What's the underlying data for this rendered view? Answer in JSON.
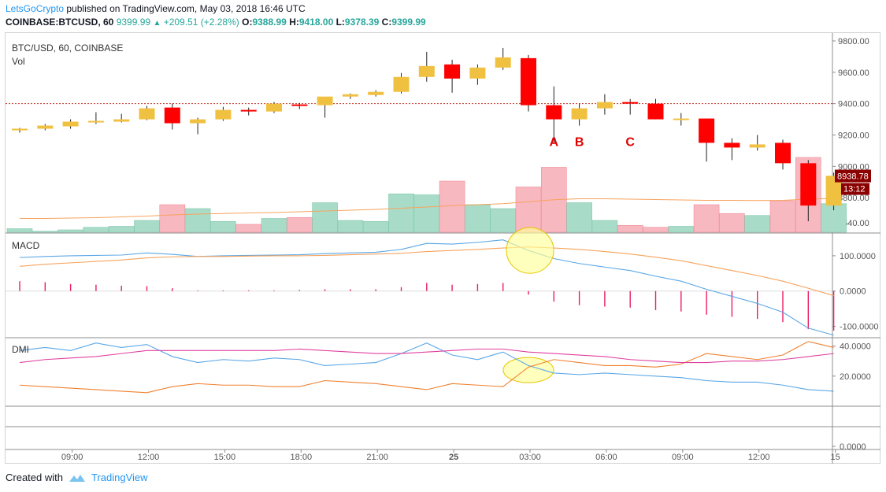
{
  "header": {
    "publisher": "LetsGoCrypto",
    "published_text": " published on TradingView.com, May 03, 2018 16:46 UTC",
    "symbol": "COINBASE:BTCUSD, 60",
    "last": "9399.99",
    "change": "+209.51 (+2.28%)",
    "o_label": "O:",
    "o": "9388.99",
    "h_label": "H:",
    "h": "9418.00",
    "l_label": "L:",
    "l": "9378.39",
    "c_label": "C:",
    "c": "9399.99"
  },
  "footer": {
    "created_with": "Created with",
    "brand": "TradingView"
  },
  "colors": {
    "bull": "#f0c040",
    "bear": "#ff0000",
    "vol_bull": "#a8dcc8",
    "vol_bear": "#f8b8c0",
    "ma": "#f7a35c",
    "macd": "#5aa7e6",
    "signal": "#f7a35c",
    "hist": "#e91e63",
    "dmi_plus": "#5aa7e6",
    "dmi_minus": "#f08030",
    "adx": "#e040a0",
    "highlight": "#ffff99",
    "price_tag": "#8b0000"
  },
  "chart_data": [
    {
      "type": "candlestick",
      "title": "BTC/USD, 60, COINBASE",
      "subtitle": "Vol",
      "ylim": [
        8580,
        9850
      ],
      "y_ticks": [
        "9800.00",
        "9600.00",
        "9400.00",
        "9200.00",
        "9000.00",
        "8800.00",
        "8640.00"
      ],
      "price_label": "8938.78",
      "timer_label": "13:12",
      "reference_line": 9400,
      "x_ticks": [
        "09:00",
        "12:00",
        "15:00",
        "18:00",
        "21:00",
        "25",
        "03:00",
        "06:00",
        "09:00",
        "12:00",
        "15"
      ],
      "annotations": [
        "A",
        "B",
        "C"
      ],
      "ohlc": [
        [
          9230,
          9245,
          9215,
          9240
        ],
        [
          9240,
          9270,
          9230,
          9260
        ],
        [
          9255,
          9300,
          9240,
          9285
        ],
        [
          9280,
          9345,
          9270,
          9290
        ],
        [
          9285,
          9335,
          9280,
          9300
        ],
        [
          9300,
          9385,
          9295,
          9370
        ],
        [
          9375,
          9400,
          9235,
          9275
        ],
        [
          9275,
          9310,
          9205,
          9300
        ],
        [
          9300,
          9380,
          9290,
          9360
        ],
        [
          9360,
          9375,
          9325,
          9350
        ],
        [
          9350,
          9410,
          9340,
          9400
        ],
        [
          9395,
          9405,
          9365,
          9390
        ],
        [
          9390,
          9440,
          9310,
          9445
        ],
        [
          9445,
          9465,
          9430,
          9460
        ],
        [
          9455,
          9485,
          9445,
          9475
        ],
        [
          9475,
          9595,
          9465,
          9570
        ],
        [
          9570,
          9730,
          9540,
          9640
        ],
        [
          9650,
          9680,
          9470,
          9560
        ],
        [
          9560,
          9650,
          9520,
          9630
        ],
        [
          9630,
          9755,
          9615,
          9695
        ],
        [
          9690,
          9710,
          9350,
          9390
        ],
        [
          9390,
          9510,
          9145,
          9300
        ],
        [
          9300,
          9400,
          9260,
          9370
        ],
        [
          9370,
          9460,
          9330,
          9410
        ],
        [
          9410,
          9430,
          9330,
          9400
        ],
        [
          9400,
          9430,
          9300,
          9300
        ],
        [
          9300,
          9340,
          9260,
          9305
        ],
        [
          9305,
          9305,
          9030,
          9150
        ],
        [
          9150,
          9180,
          9040,
          9120
        ],
        [
          9120,
          9200,
          9100,
          9140
        ],
        [
          9150,
          9170,
          8980,
          9020
        ],
        [
          9020,
          9040,
          8650,
          8750
        ],
        [
          8750,
          8960,
          8720,
          8940
        ]
      ],
      "volume": [
        18,
        5,
        12,
        25,
        30,
        60,
        140,
        120,
        55,
        40,
        70,
        75,
        150,
        60,
        55,
        195,
        190,
        260,
        140,
        120,
        230,
        330,
        150,
        60,
        35,
        25,
        30,
        140,
        95,
        85,
        160,
        380,
        145
      ],
      "volume_ma": [
        70,
        70,
        72,
        74,
        78,
        82,
        88,
        92,
        95,
        98,
        100,
        104,
        108,
        112,
        116,
        122,
        128,
        135,
        140,
        145,
        155,
        165,
        170,
        170,
        168,
        166,
        164,
        162,
        162,
        161,
        162,
        168,
        172
      ]
    },
    {
      "type": "line",
      "title": "MACD",
      "ylim": [
        -130,
        160
      ],
      "y_ticks": [
        "100.0000",
        "0.0000",
        "-100.0000"
      ],
      "series": [
        {
          "values": [
            95,
            98,
            100,
            101,
            102,
            108,
            104,
            98,
            100,
            101,
            102,
            103,
            106,
            108,
            110,
            118,
            135,
            133,
            138,
            145,
            115,
            92,
            78,
            68,
            58,
            42,
            28,
            5,
            -15,
            -35,
            -60,
            -105,
            -125
          ]
        },
        {
          "values": [
            70,
            76,
            80,
            84,
            88,
            94,
            97,
            98,
            98,
            99,
            100,
            100,
            101,
            103,
            105,
            107,
            112,
            115,
            118,
            122,
            125,
            122,
            118,
            112,
            105,
            96,
            86,
            72,
            58,
            44,
            28,
            8,
            -13
          ]
        },
        {
          "values": [
            28,
            25,
            20,
            18,
            15,
            14,
            8,
            2,
            2,
            2,
            2,
            3,
            5,
            5,
            5,
            11,
            23,
            18,
            20,
            23,
            -10,
            -30,
            -40,
            -44,
            -47,
            -54,
            -58,
            -67,
            -73,
            -79,
            -88,
            -108,
            -112
          ]
        }
      ]
    },
    {
      "type": "line",
      "title": "DMI",
      "ylim": [
        0,
        45
      ],
      "y_ticks": [
        "40.0000",
        "20.0000"
      ],
      "series": [
        {
          "values": [
            37,
            39,
            37,
            42,
            39,
            41,
            33,
            29,
            31,
            30,
            32,
            31,
            27,
            28,
            29,
            35,
            42,
            34,
            31,
            36,
            27,
            22,
            21,
            22,
            21,
            20,
            19,
            17,
            16,
            16,
            14,
            11,
            10
          ]
        },
        {
          "values": [
            14,
            13,
            12,
            11,
            10,
            9,
            13,
            15,
            14,
            14,
            13,
            13,
            17,
            16,
            15,
            13,
            11,
            15,
            14,
            13,
            26,
            31,
            29,
            27,
            27,
            26,
            28,
            35,
            33,
            31,
            34,
            43,
            39
          ]
        },
        {
          "values": [
            29,
            31,
            32,
            33,
            35,
            37,
            37,
            37,
            37,
            37,
            37,
            38,
            37,
            36,
            35,
            35,
            36,
            37,
            38,
            38,
            36,
            35,
            34,
            33,
            31,
            30,
            29,
            29,
            30,
            30,
            31,
            33,
            35
          ]
        }
      ]
    },
    {
      "type": "line",
      "ylim": [
        -5,
        40
      ],
      "y_ticks": [
        "0.0000"
      ],
      "series": []
    }
  ]
}
